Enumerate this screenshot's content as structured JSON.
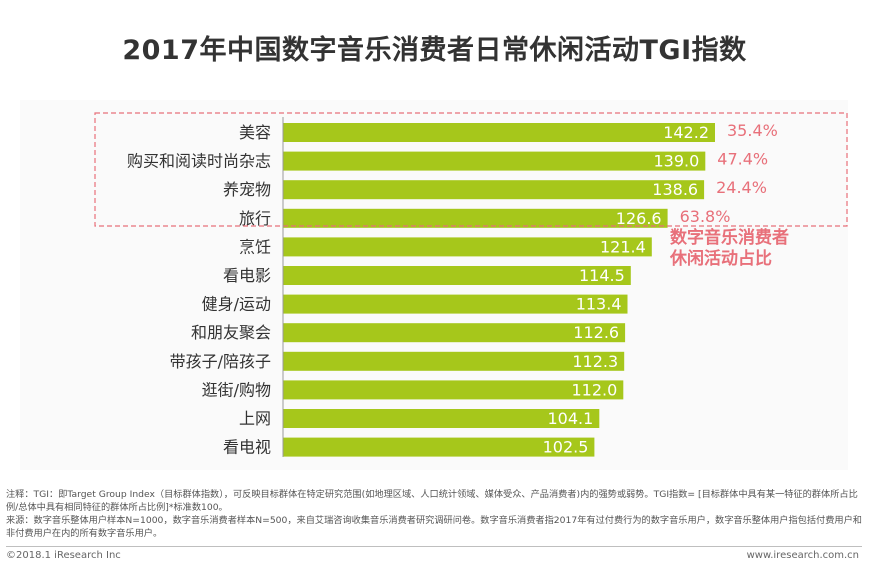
{
  "title": "2017年中国数字音乐消费者日常休闲活动TGI指数",
  "chart_data": {
    "type": "bar",
    "orientation": "horizontal",
    "title": "2017年中国数字音乐消费者日常休闲活动TGI指数",
    "categories": [
      "美容",
      "购买和阅读时尚杂志",
      "养宠物",
      "旅行",
      "烹饪",
      "看电影",
      "健身/运动",
      "和朋友聚会",
      "带孩子/陪孩子",
      "逛街/购物",
      "上网",
      "看电视"
    ],
    "values": [
      142.2,
      139.0,
      138.6,
      126.6,
      121.4,
      114.5,
      113.4,
      112.6,
      112.3,
      112.0,
      104.1,
      102.5
    ],
    "value_labels": [
      "142.2",
      "139.0",
      "138.6",
      "126.6",
      "121.4",
      "114.5",
      "113.4",
      "112.6",
      "112.3",
      "112.0",
      "104.1",
      "102.5"
    ],
    "share_labels": [
      "35.4%",
      "47.4%",
      "24.4%",
      "63.8%"
    ],
    "share_annotation": [
      "数字音乐消费者",
      "休闲活动占比"
    ],
    "bar_color": "#a6c71b",
    "share_color": "#e8707a",
    "highlight_border_color": "#e8707a",
    "xlim": [
      0,
      142.2
    ]
  },
  "notes": {
    "line1": "注释：TGI：即Target Group Index（目标群体指数），可反映目标群体在特定研究范围(如地理区域、人口统计领域、媒体受众、产品消费者)内的强势或弱势。TGI指数= [目标群体中具有某一特征的群体所占比例/总体中具有相同特征的群体所占比例]*标准数100。",
    "line2": "来源：数字音乐整体用户样本N=1000，数字音乐消费者样本N=500，来自艾瑞咨询收集音乐消费者研究调研问卷。数字音乐消费者指2017年有过付费行为的数字音乐用户，数字音乐整体用户指包括付费用户和非付费用户在内的所有数字音乐用户。"
  },
  "footer": {
    "copyright": "©2018.1 iResearch Inc",
    "website": "www.iresearch.com.cn"
  }
}
